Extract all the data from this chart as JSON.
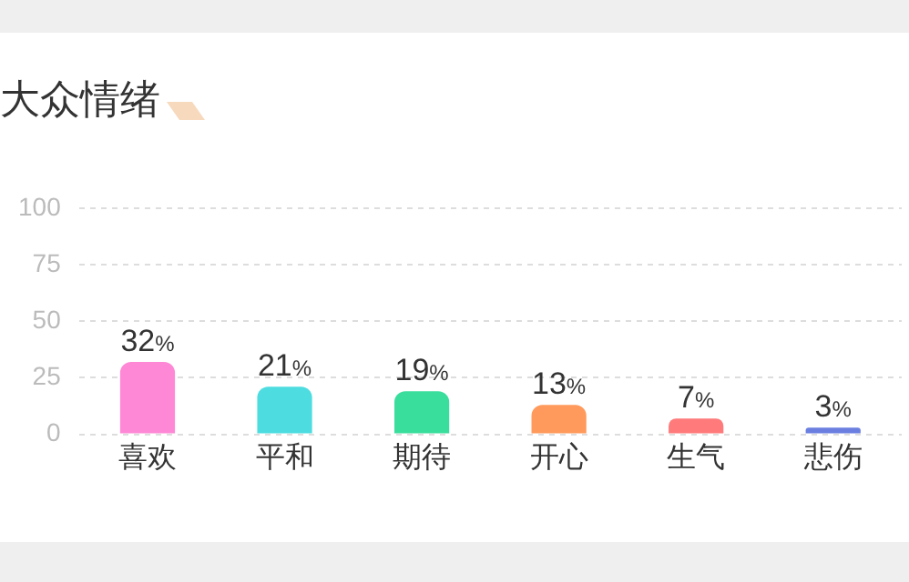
{
  "chart_data": {
    "type": "bar",
    "title": "大众情绪",
    "categories": [
      "喜欢",
      "平和",
      "期待",
      "开心",
      "生气",
      "悲伤"
    ],
    "values": [
      32,
      21,
      19,
      13,
      7,
      3
    ],
    "value_labels": [
      "32%",
      "21%",
      "19%",
      "13%",
      "7%",
      "3%"
    ],
    "colors": [
      "#ff88d6",
      "#4ddde0",
      "#3ade9c",
      "#ff9a5c",
      "#ff7a7a",
      "#6b7fe0"
    ],
    "ylim": [
      0,
      100
    ],
    "yticks": [
      0,
      25,
      50,
      75,
      100
    ],
    "grid": "y",
    "legend": false
  }
}
